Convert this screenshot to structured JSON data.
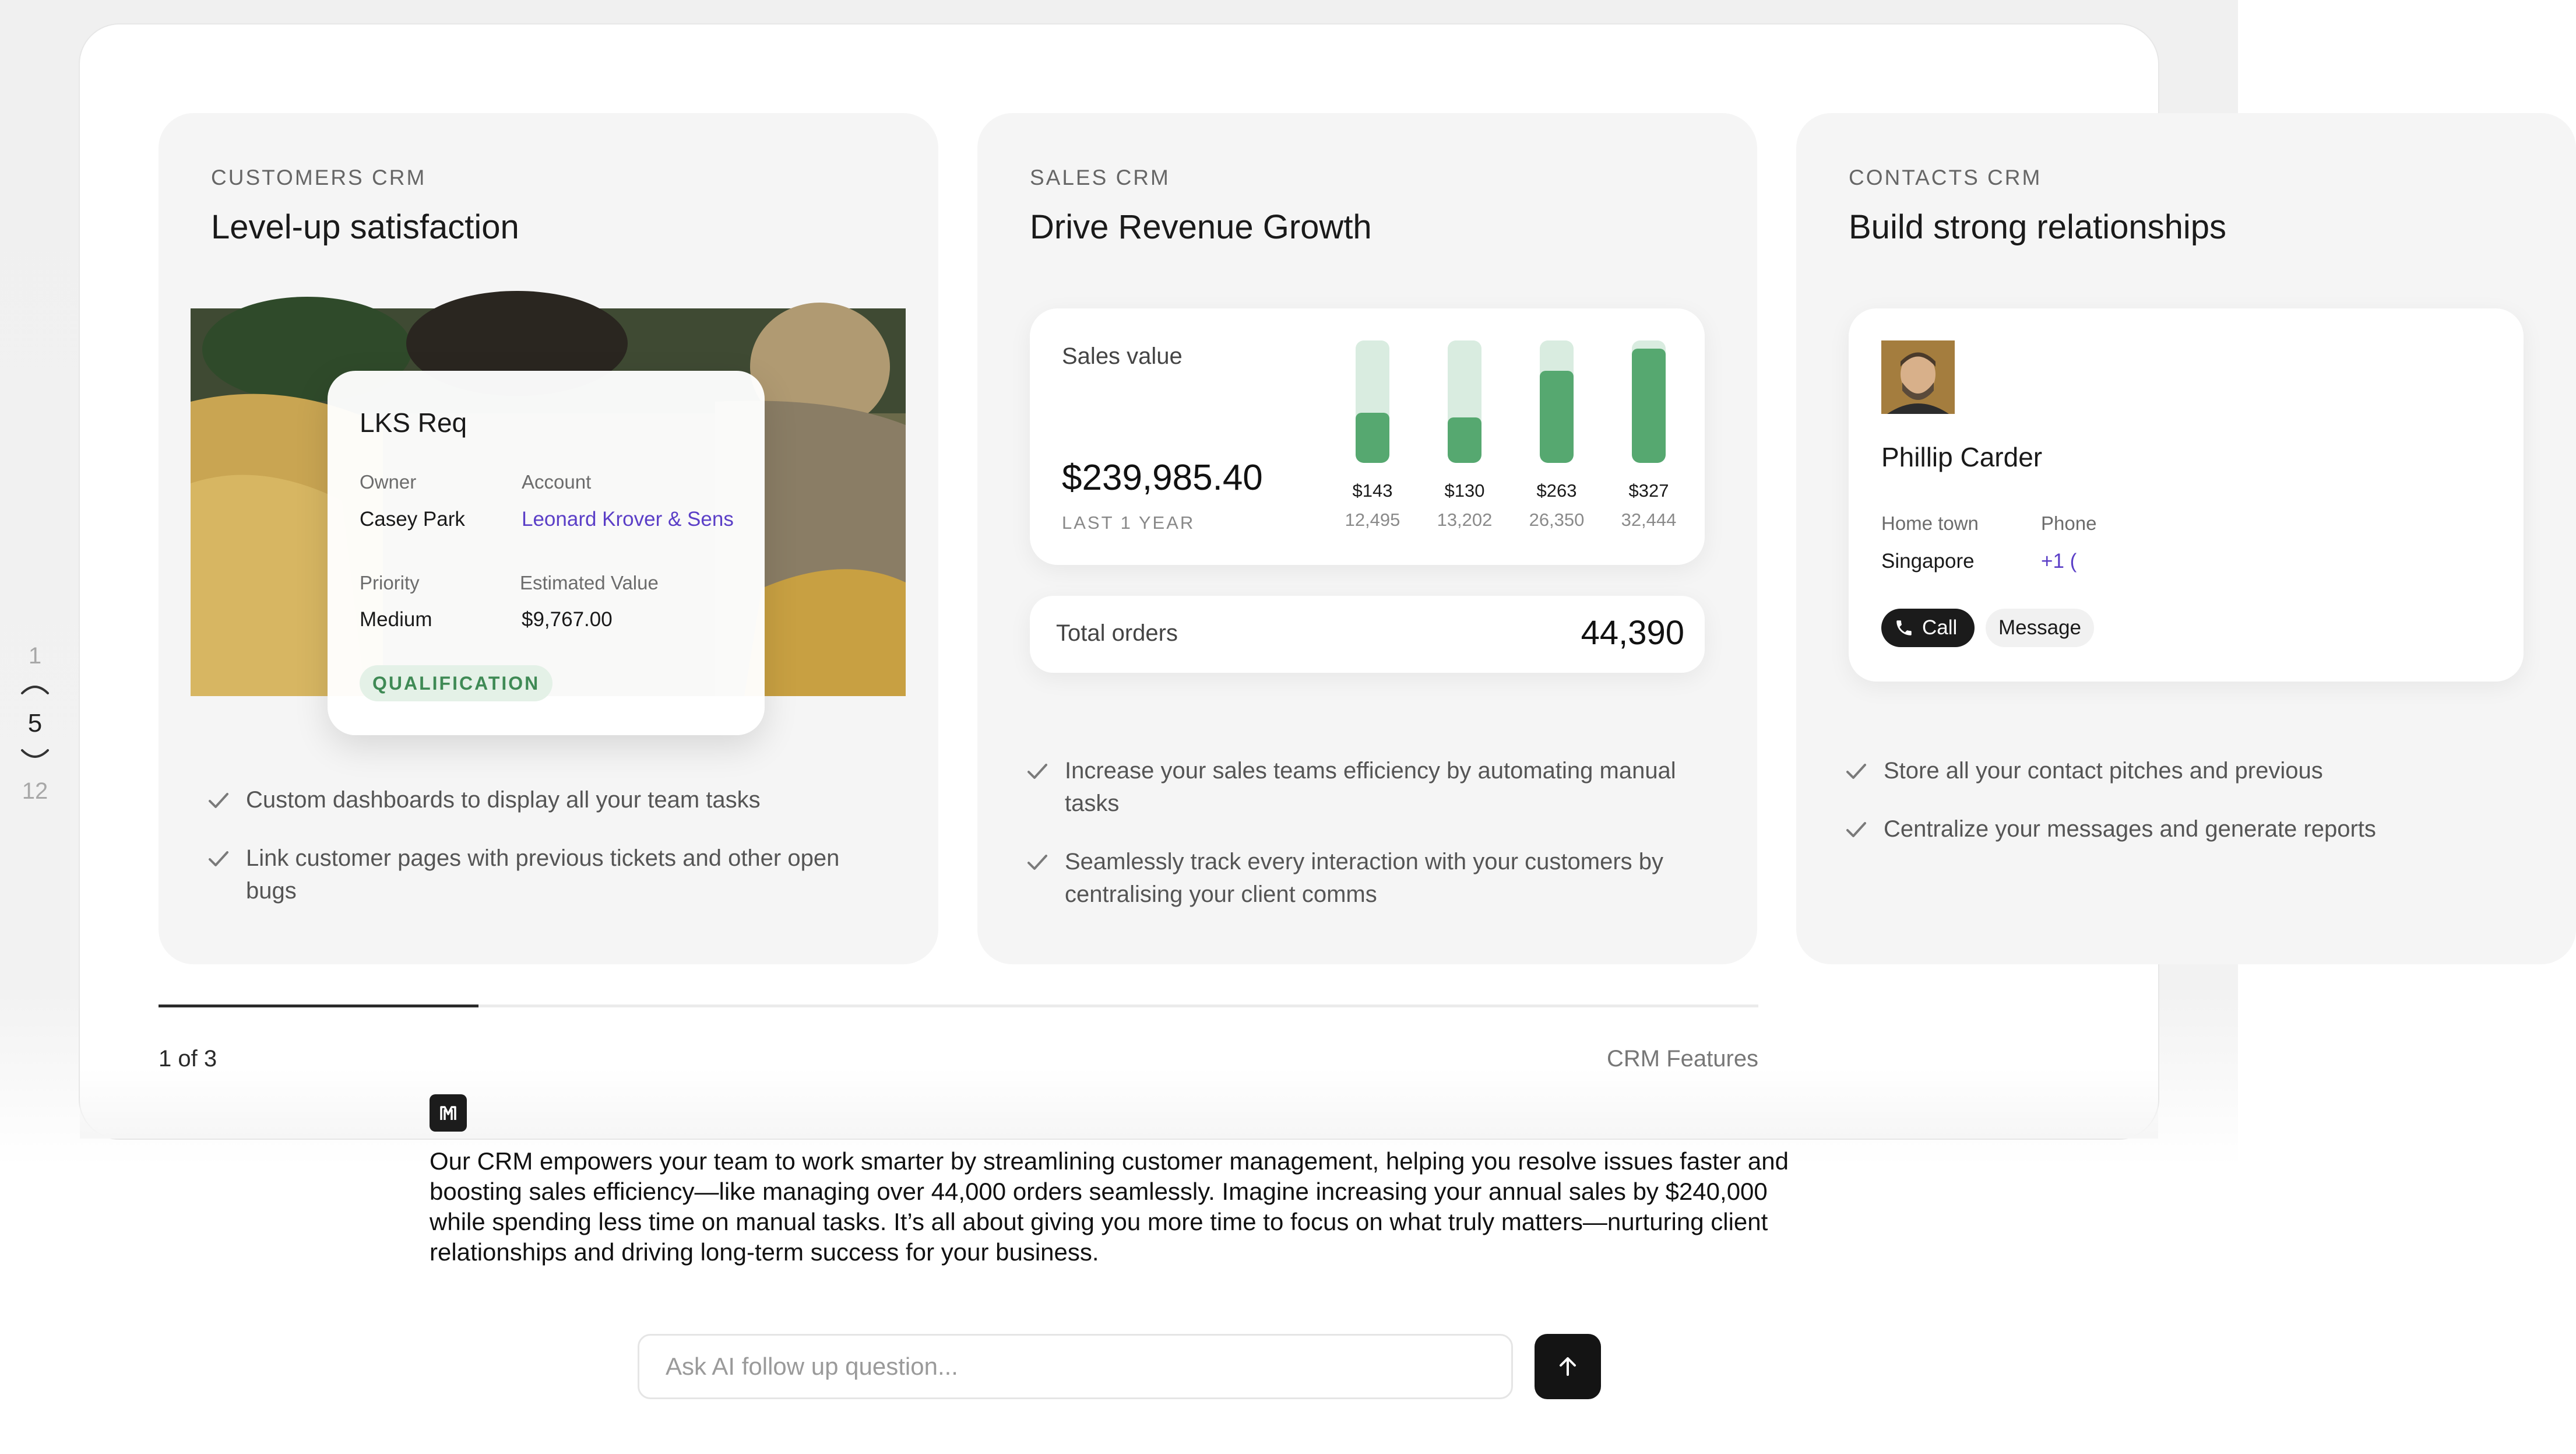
{
  "pager": {
    "prev_number": "1",
    "current": "5",
    "next_number": "12"
  },
  "cards": [
    {
      "eyebrow": "CUSTOMERS CRM",
      "heading": "Level-up satisfaction",
      "record": {
        "title": "LKS Req",
        "owner_label": "Owner",
        "owner_value": "Casey Park",
        "account_label": "Account",
        "account_value": "Leonard Krover & Sens",
        "priority_label": "Priority",
        "priority_value": "Medium",
        "estimated_label": "Estimated Value",
        "estimated_value": "$9,767.00",
        "stage_badge": "QUALIFICATION"
      },
      "features": [
        "Custom dashboards to display all your team tasks",
        "Link customer pages with previous tickets and other open bugs"
      ]
    },
    {
      "eyebrow": "SALES CRM",
      "heading": "Drive Revenue Growth",
      "sales_widget": {
        "label": "Sales value",
        "amount": "$239,985.40",
        "period": "LAST 1 YEAR"
      },
      "orders_widget": {
        "label": "Total orders",
        "value": "44,390"
      },
      "features": [
        "Increase your sales teams efficiency by automating manual tasks",
        "Seamlessly track every interaction with your customers by centralising your client comms"
      ]
    },
    {
      "eyebrow": "CONTACTS CRM",
      "heading": "Build strong relationships",
      "contact": {
        "name": "Phillip Carder",
        "hometown_label": "Home town",
        "hometown_value": "Singapore",
        "phone_label": "Phone",
        "phone_value": "+1 (",
        "call_button": "Call",
        "message_button": "Message"
      },
      "features": [
        "Store all your contact pitches and previous",
        "Centralize your messages and generate reports"
      ]
    }
  ],
  "chart_data": {
    "type": "bar",
    "categories": [
      "12,495",
      "13,202",
      "26,350",
      "32,444"
    ],
    "bar_labels": [
      "$143",
      "$130",
      "$263",
      "$327"
    ],
    "values": [
      143,
      130,
      263,
      327
    ],
    "ylim": [
      0,
      350
    ],
    "colors": {
      "fill": "#56a870",
      "track": "#d9ece0"
    }
  },
  "carousel": {
    "counter": "1 of 3",
    "progress": 0.2,
    "section_label": "CRM Features"
  },
  "ai": {
    "answer": "Our CRM empowers your team to work smarter by streamlining customer management, helping you resolve issues faster and boosting sales efficiency—like managing over 44,000 orders seamlessly. Imagine increasing your annual sales by $240,000 while spending less time on manual tasks. It’s all about giving you more time to focus on what truly matters—nurturing client relationships and driving long-term success for your business.",
    "input_placeholder": "Ask AI follow up question...",
    "input_value": "",
    "send_icon": "arrow-up-icon"
  },
  "colors": {
    "accent_green": "#56a870",
    "link_purple": "#5b3fc7",
    "dark": "#141414"
  }
}
